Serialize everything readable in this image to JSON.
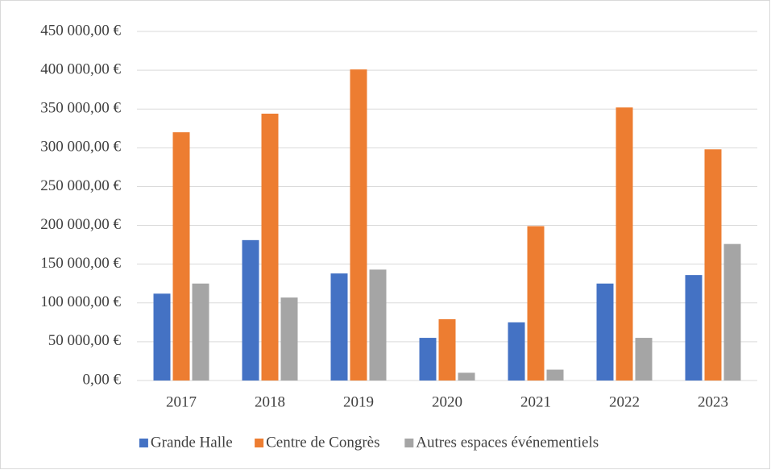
{
  "chart_data": {
    "type": "bar",
    "categories": [
      "2017",
      "2018",
      "2019",
      "2020",
      "2021",
      "2022",
      "2023"
    ],
    "series": [
      {
        "name": "Grande Halle",
        "color": "#4472c4",
        "values": [
          112000,
          181000,
          138000,
          55000,
          75000,
          125000,
          136000
        ]
      },
      {
        "name": "Centre de Congrès",
        "color": "#ed7d31",
        "values": [
          320000,
          344000,
          401000,
          79000,
          199000,
          352000,
          298000
        ]
      },
      {
        "name": "Autres espaces événementiels",
        "color": "#a5a5a5",
        "values": [
          125000,
          107000,
          143000,
          10000,
          14000,
          55000,
          176000
        ]
      }
    ],
    "ylim": [
      0,
      450000
    ],
    "yticks": [
      {
        "value": 0,
        "label": "0,00 €"
      },
      {
        "value": 50000,
        "label": "50 000,00 €"
      },
      {
        "value": 100000,
        "label": "100 000,00 €"
      },
      {
        "value": 150000,
        "label": "150 000,00 €"
      },
      {
        "value": 200000,
        "label": "200 000,00 €"
      },
      {
        "value": 250000,
        "label": "250 000,00 €"
      },
      {
        "value": 300000,
        "label": "300 000,00 €"
      },
      {
        "value": 350000,
        "label": "350 000,00 €"
      },
      {
        "value": 400000,
        "label": "400 000,00 €"
      },
      {
        "value": 450000,
        "label": "450 000,00 €"
      }
    ],
    "grid": true,
    "legend": "bottom"
  }
}
